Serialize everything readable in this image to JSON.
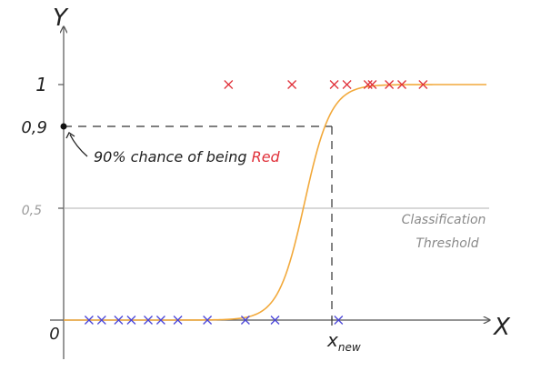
{
  "colors": {
    "axis": "#555555",
    "dash": "#333333",
    "threshold_line": "#b0b0b0",
    "curve": "#f2a93b",
    "red_marker": "#e0313a",
    "blue_marker": "#4a45d8",
    "annotation_text": "#222222",
    "red_word": "#e0313a",
    "gray_text": "#8a8a8a"
  },
  "chart_data": {
    "type": "scatter",
    "axes": {
      "x_label": "X",
      "y_label": "Y",
      "origin_label": "0",
      "xlim": [
        0,
        1
      ],
      "ylim": [
        0,
        1
      ]
    },
    "y_ticks": [
      {
        "value": 1,
        "label": "1"
      },
      {
        "value": 0.9,
        "label": "0,9"
      },
      {
        "value": 0.5,
        "label": "0,5"
      }
    ],
    "x_ticks": [
      {
        "value": 0.63,
        "label": "x",
        "subscript": "new"
      }
    ],
    "threshold": {
      "value": 0.5,
      "label_line1": "Classification",
      "label_line2": "Threshold"
    },
    "highlight_point": {
      "x": 0.63,
      "y": 0.9,
      "annotation_prefix": "90% chance of being ",
      "annotation_colored": "Red"
    },
    "curve": {
      "midpoint": 0.57,
      "steepness": 32,
      "y_min": 0,
      "y_max": 1,
      "x_start": 0,
      "x_end": 1
    },
    "series": [
      {
        "class": "blue",
        "y": 0,
        "x": [
          0.06,
          0.09,
          0.13,
          0.16,
          0.2,
          0.23,
          0.27,
          0.34,
          0.43,
          0.5,
          0.65
        ]
      },
      {
        "class": "red",
        "y": 1,
        "x": [
          0.39,
          0.54,
          0.64,
          0.67,
          0.72,
          0.73,
          0.77,
          0.8,
          0.85
        ]
      }
    ]
  }
}
